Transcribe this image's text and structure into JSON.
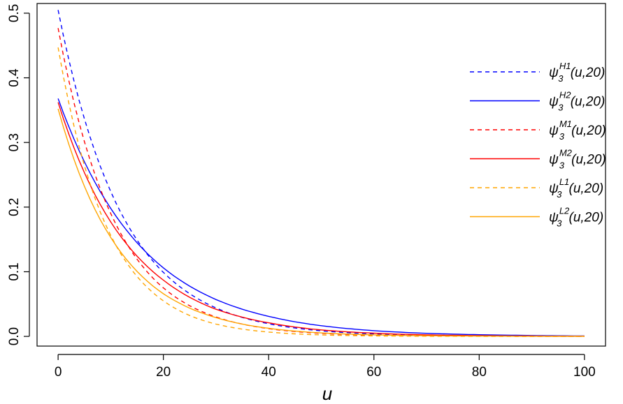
{
  "chart_data": {
    "type": "line",
    "title": "",
    "xlabel": "u",
    "ylabel": "",
    "xlim": [
      -4,
      104
    ],
    "ylim": [
      -0.015,
      0.515
    ],
    "x_ticks": [
      0,
      20,
      40,
      60,
      80,
      100
    ],
    "x_tick_labels": [
      "0",
      "20",
      "40",
      "60",
      "80",
      "100"
    ],
    "y_ticks": [
      0.0,
      0.1,
      0.2,
      0.3,
      0.4,
      0.5
    ],
    "y_tick_labels": [
      "0.0",
      "0.1",
      "0.2",
      "0.3",
      "0.4",
      "0.5"
    ],
    "grid": false,
    "legend_position": "top-right",
    "x": [
      0,
      10,
      20,
      30,
      40,
      50,
      60,
      70,
      80,
      90,
      100
    ],
    "series": [
      {
        "name": "ψ3H1(u,20)",
        "legend": {
          "symbol": "ψ",
          "sup": "H1",
          "sub": "3",
          "arg": "(u,20)"
        },
        "color": "#0000ff",
        "dash": "dashed",
        "values": [
          0.505,
          0.224,
          0.099,
          0.044,
          0.0195,
          0.0086,
          0.0038,
          0.0017,
          0.0007,
          0.0003,
          0.0001
        ]
      },
      {
        "name": "ψ3H2(u,20)",
        "legend": {
          "symbol": "ψ",
          "sup": "H2",
          "sub": "3",
          "arg": "(u,20)"
        },
        "color": "#0000ff",
        "dash": "solid",
        "values": [
          0.368,
          0.198,
          0.106,
          0.057,
          0.031,
          0.0165,
          0.0089,
          0.0048,
          0.0026,
          0.0014,
          0.0007
        ]
      },
      {
        "name": "ψ3M1(u,20)",
        "legend": {
          "symbol": "ψ",
          "sup": "M1",
          "sub": "3",
          "arg": "(u,20)"
        },
        "color": "#ff0000",
        "dash": "dashed",
        "values": [
          0.477,
          0.19,
          0.075,
          0.03,
          0.012,
          0.0047,
          0.0019,
          0.00074,
          0.00029,
          0.00012,
          5e-05
        ]
      },
      {
        "name": "ψ3M2(u,20)",
        "legend": {
          "symbol": "ψ",
          "sup": "M2",
          "sub": "3",
          "arg": "(u,20)"
        },
        "color": "#ff0000",
        "dash": "solid",
        "values": [
          0.362,
          0.177,
          0.087,
          0.042,
          0.021,
          0.01,
          0.005,
          0.0024,
          0.0012,
          0.0006,
          0.0003
        ]
      },
      {
        "name": "ψ3L1(u,20)",
        "legend": {
          "symbol": "ψ",
          "sup": "L1",
          "sub": "3",
          "arg": "(u,20)"
        },
        "color": "#ffa500",
        "dash": "dashed",
        "values": [
          0.447,
          0.156,
          0.055,
          0.019,
          0.0067,
          0.0023,
          0.0008,
          0.00028,
          0.0001,
          3e-05,
          1e-05
        ]
      },
      {
        "name": "ψ3L2(u,20)",
        "legend": {
          "symbol": "ψ",
          "sup": "L2",
          "sub": "3",
          "arg": "(u,20)"
        },
        "color": "#ffa500",
        "dash": "solid",
        "values": [
          0.352,
          0.153,
          0.066,
          0.029,
          0.0125,
          0.0054,
          0.0024,
          0.001,
          0.00045,
          0.0002,
          8e-05
        ]
      }
    ]
  }
}
